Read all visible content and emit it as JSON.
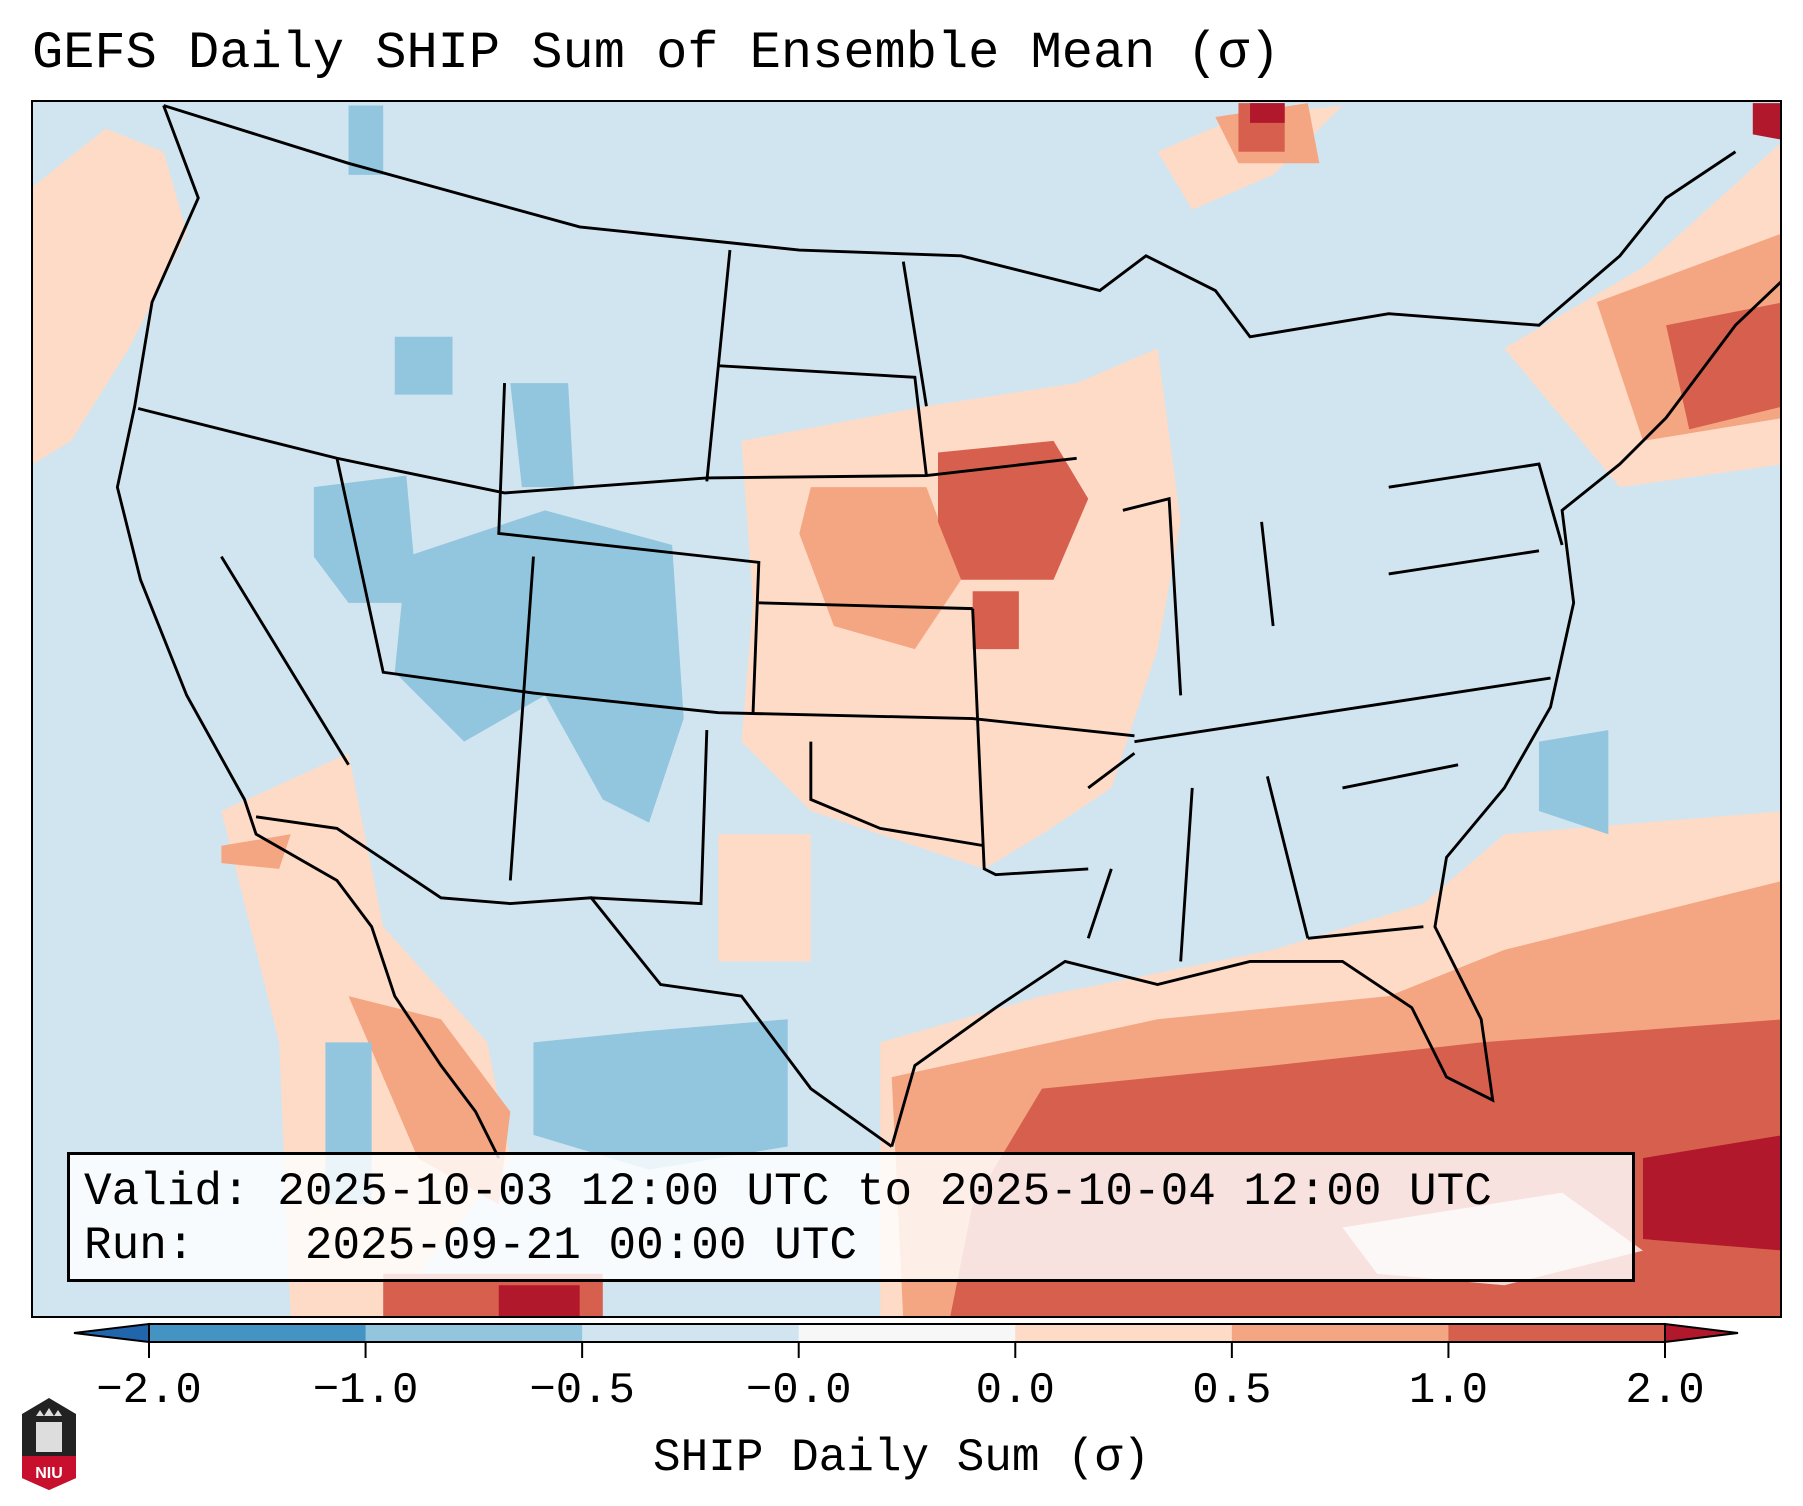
{
  "title": "GEFS Daily SHIP Sum of Ensemble Mean (σ)",
  "legend": {
    "valid_label": "Valid:",
    "valid_value": "2025-10-03 12:00 UTC to 2025-10-04 12:00 UTC",
    "run_label": "Run:",
    "run_value": "2025-09-21 00:00 UTC"
  },
  "logo_text": "NIU",
  "chart_data": {
    "type": "heatmap",
    "title": "GEFS Daily SHIP Sum of Ensemble Mean (σ)",
    "region": "Contiguous United States",
    "colorbar": {
      "label": "SHIP Daily Sum (σ)",
      "ticks": [
        "-2.0",
        "-1.0",
        "-0.5",
        "-0.0",
        "0.0",
        "0.5",
        "1.0",
        "2.0"
      ],
      "colors": [
        "#4393c3",
        "#92c5de",
        "#d1e5f0",
        "#f7f7f7",
        "#fddbc7",
        "#f4a582",
        "#d6604d"
      ],
      "extend_low_color": "#2166ac",
      "extend_high_color": "#b2182b",
      "extend": "both"
    },
    "highlights": [
      {
        "area": "Iowa / southern Minnesota",
        "range": "1.0 to 2.0"
      },
      {
        "area": "Gulf of Mexico and western Atlantic near Bahamas",
        "range": "1.0 to >2.0"
      },
      {
        "area": "Colorado, Utah, Nevada",
        "range": "-1.0 to -0.5"
      },
      {
        "area": "Southern Plains and Midwest",
        "range": "0.0 to 1.0"
      }
    ]
  }
}
